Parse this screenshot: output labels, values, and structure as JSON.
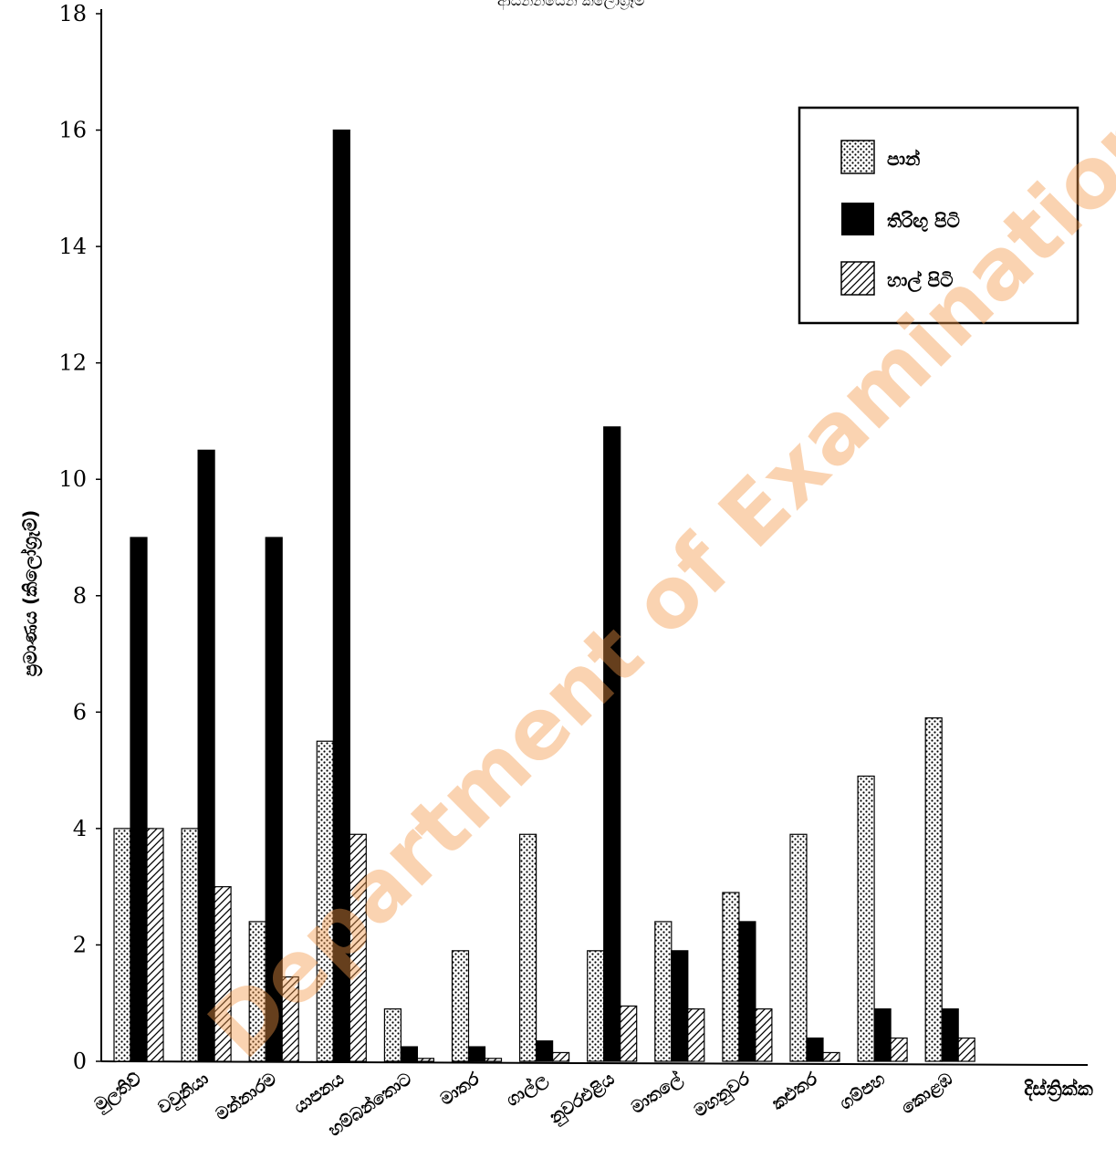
{
  "chart_data": {
    "type": "bar",
    "title_fragment": "ආසන්නයෙන් කිලෝග්‍රෑම",
    "ylabel": "ප්‍රමාණය (කිලෝග්‍රෑම්)",
    "xlabel": "දිස්ත්‍රික්ක",
    "ylim": [
      0,
      18
    ],
    "yticks": [
      0,
      2,
      4,
      6,
      8,
      10,
      12,
      14,
      16,
      18
    ],
    "categories": [
      "මුලතිව්",
      "වවුනියා",
      "මන්නාරම",
      "යාපනය",
      "හම්බන්තොට",
      "මාතර",
      "ගාල්ල",
      "නුවරඑළිය",
      "මාතලේ",
      "මහනුවර",
      "කළුතර",
      "ගම්පහ",
      "කොළඹ"
    ],
    "series": [
      {
        "name": "පාන්",
        "pattern": "dots",
        "values": [
          4.0,
          4.0,
          2.4,
          5.5,
          0.9,
          1.9,
          3.9,
          1.9,
          2.4,
          2.9,
          3.9,
          4.9,
          5.9
        ]
      },
      {
        "name": "තිරිඟු පිටි",
        "pattern": "solid",
        "values": [
          9.0,
          10.5,
          9.0,
          16.0,
          0.25,
          0.25,
          0.35,
          10.9,
          1.9,
          2.4,
          0.4,
          0.9,
          0.9
        ]
      },
      {
        "name": "හාල් පිටි",
        "pattern": "hatch",
        "values": [
          4.0,
          3.0,
          1.45,
          3.9,
          0.05,
          0.05,
          0.15,
          0.95,
          0.9,
          0.9,
          0.15,
          0.4,
          0.4
        ]
      }
    ],
    "legend_position": "top-right",
    "colors": {
      "ink": "#000000",
      "watermark": "#f2a06a"
    }
  },
  "watermark": "Department of Examinations Sri Lanka"
}
